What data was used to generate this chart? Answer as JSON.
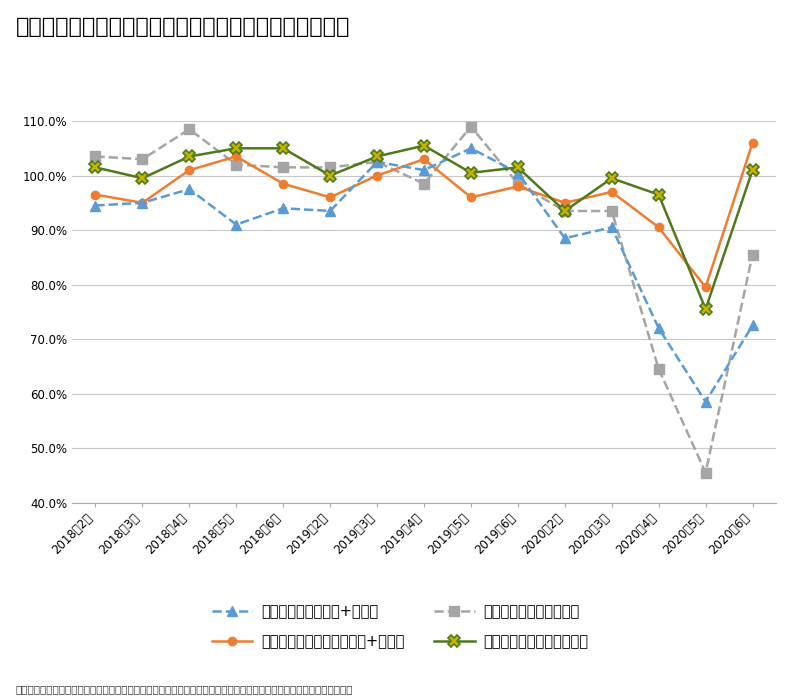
{
  "title": "図表２：乗用車販売動向［対前年同月比（単位：％）］",
  "x_labels": [
    "2018年2月",
    "2018年3月",
    "2018年4月",
    "2018年5月",
    "2018年6月",
    "2019年2月",
    "2019年3月",
    "2019年4月",
    "2019年5月",
    "2019年6月",
    "2020年2月",
    "2020年3月",
    "2020年4月",
    "2020年5月",
    "2020年6月"
  ],
  "shinsha_values": [
    94.5,
    95.0,
    97.5,
    91.0,
    94.0,
    93.5,
    102.5,
    101.0,
    105.0,
    100.5,
    88.5,
    90.5,
    72.0,
    58.5,
    72.5
  ],
  "chuko_values": [
    96.5,
    95.0,
    101.0,
    103.5,
    98.5,
    96.0,
    100.0,
    103.0,
    96.0,
    98.0,
    95.0,
    97.0,
    90.5,
    79.5,
    106.0
  ],
  "kei_shin_values": [
    103.5,
    103.0,
    108.5,
    102.0,
    101.5,
    101.5,
    102.5,
    98.5,
    109.0,
    98.5,
    93.5,
    93.5,
    64.5,
    45.5,
    85.5
  ],
  "kei_chuko_values": [
    101.5,
    99.5,
    103.5,
    105.0,
    105.0,
    100.0,
    103.5,
    105.5,
    100.5,
    101.5,
    93.5,
    99.5,
    96.5,
    75.5,
    101.0
  ],
  "shinsha_color": "#5B9BD5",
  "chuko_color": "#ED7D31",
  "kei_shin_color": "#A5A5A5",
  "kei_chuko_color": "#4E7A1A",
  "kei_chuko_marker_face": "#C8B400",
  "shinsha_label": "新車販売台数（普通+小型）",
  "chuko_label": "中古乗用車登録台数（普通+小型）",
  "kei_shin_label": "軽四輪（新車）販売台数",
  "kei_chuko_label": "軽四輪（中古車）販売台数",
  "ylim_min": 40.0,
  "ylim_max": 113.0,
  "yticks": [
    40.0,
    50.0,
    60.0,
    70.0,
    80.0,
    90.0,
    100.0,
    110.0
  ],
  "ytick_labels": [
    "40.0%",
    "50.0%",
    "60.0%",
    "70.0%",
    "80.0%",
    "90.0%",
    "100.0%",
    "110.0%"
  ],
  "background_color": "#FFFFFF",
  "grid_color": "#C8C8C8",
  "title_fontsize": 16,
  "tick_fontsize": 8.5,
  "legend_fontsize": 10.5,
  "source_text": "出典：（一社）日本自動車販売協会連合会「車種別販売台数」、（一社）全国軽自動車協会連合会「計四輪車販売台数」"
}
